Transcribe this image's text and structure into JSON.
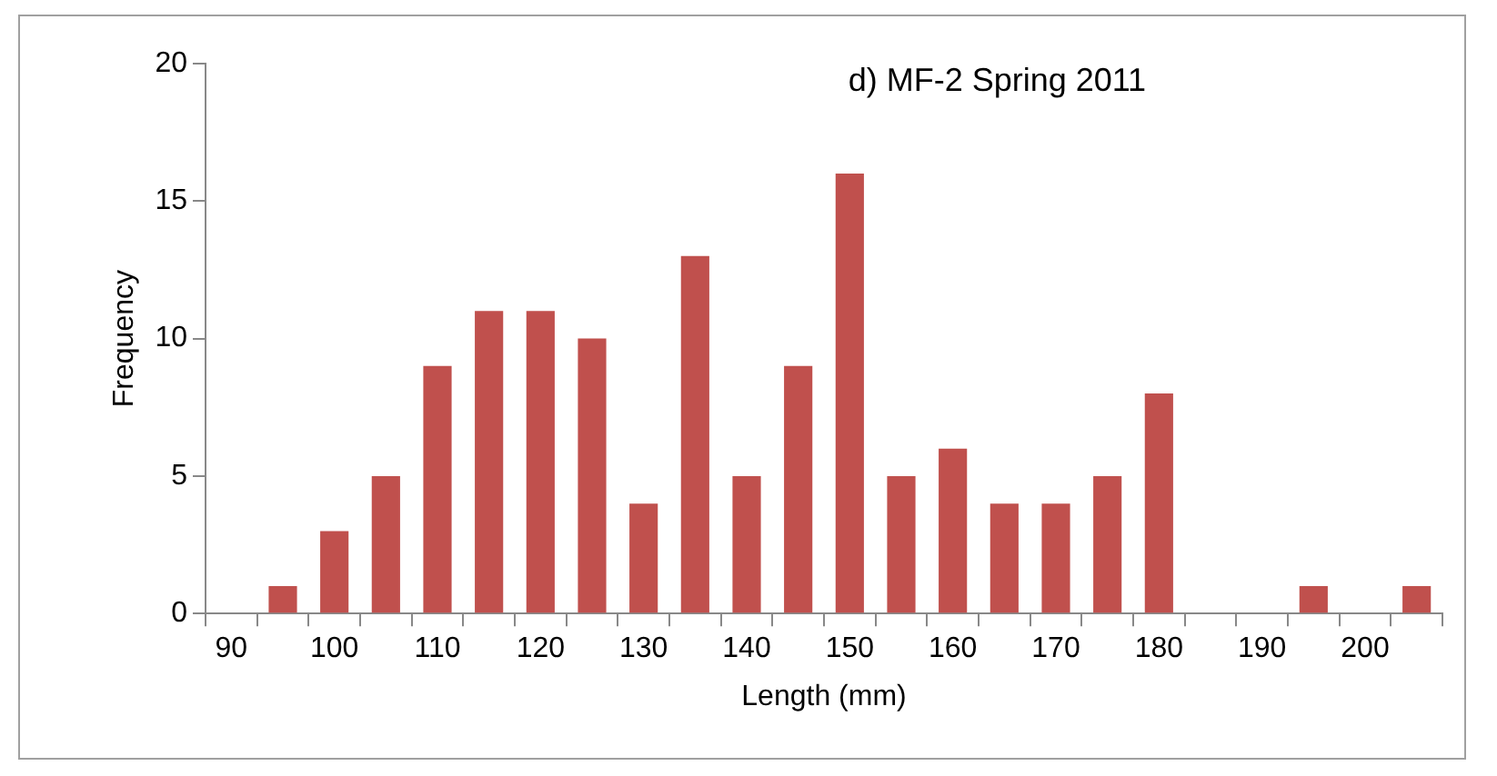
{
  "chart_data": {
    "type": "bar",
    "title": "d) MF-2 Spring 2011",
    "xlabel": "Length (mm)",
    "ylabel": "Frequency",
    "categories": [
      "90",
      null,
      "100",
      null,
      "110",
      null,
      "120",
      null,
      "130",
      null,
      "140",
      null,
      "150",
      null,
      "160",
      null,
      "170",
      null,
      "180",
      null,
      "190",
      null,
      "200",
      null
    ],
    "values": [
      0,
      1,
      3,
      5,
      9,
      11,
      11,
      10,
      4,
      13,
      5,
      9,
      16,
      5,
      6,
      4,
      4,
      5,
      8,
      0,
      0,
      1,
      0,
      1
    ],
    "color": "#c0504d",
    "ylim": [
      0,
      20
    ],
    "yticks": [
      0,
      5,
      10,
      15,
      20
    ],
    "grid": false,
    "legend": false
  }
}
